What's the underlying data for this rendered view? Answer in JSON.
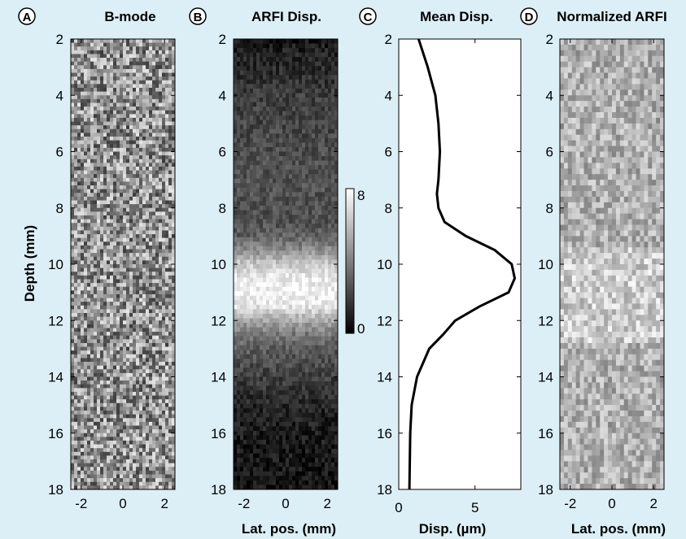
{
  "figure": {
    "background": "#dceff6",
    "ylabel": "Depth (mm)",
    "panels": [
      {
        "letter": "A",
        "title": "B-mode",
        "xlabel": ""
      },
      {
        "letter": "B",
        "title": "ARFI Disp.",
        "xlabel": "Lat. pos. (mm)"
      },
      {
        "letter": "C",
        "title": "Mean Disp.",
        "xlabel": "Disp. (µm)"
      },
      {
        "letter": "D",
        "title": "Normalized ARFI",
        "xlabel": "Lat. pos. (mm)"
      }
    ],
    "colorbar": {
      "min_label": "0",
      "max_label": "8"
    }
  },
  "chart_data": [
    {
      "panel": "A",
      "type": "heatmap",
      "title": "B-mode",
      "ylabel": "Depth (mm)",
      "xlim": [
        -2.5,
        2.5
      ],
      "ylim": [
        18,
        2
      ],
      "x_ticks": [
        -2,
        0,
        2
      ],
      "y_ticks": [
        2,
        4,
        6,
        8,
        10,
        12,
        14,
        16,
        18
      ],
      "colormap": "gray",
      "content": "speckle texture, uniform"
    },
    {
      "panel": "B",
      "type": "heatmap",
      "title": "ARFI Disp.",
      "xlabel": "Lat. pos. (mm)",
      "xlim": [
        -2.5,
        2.5
      ],
      "ylim": [
        18,
        2
      ],
      "x_ticks": [
        -2,
        0,
        2
      ],
      "y_ticks": [
        2,
        4,
        6,
        8,
        10,
        12,
        14,
        16,
        18
      ],
      "colormap": "gray",
      "clim": [
        0,
        8
      ],
      "depth_profile": {
        "depth": [
          2,
          4,
          6,
          7,
          8,
          8.5,
          9,
          9.5,
          10,
          10.5,
          11,
          11.5,
          12,
          12.5,
          13,
          14,
          15,
          16,
          17,
          18
        ],
        "value": [
          0.7,
          1.9,
          2.4,
          2.6,
          2.5,
          2.5,
          3.0,
          4.4,
          6.3,
          7.4,
          7.6,
          7.2,
          5.3,
          3.7,
          2.9,
          2.0,
          1.2,
          0.85,
          0.75,
          0.7
        ]
      }
    },
    {
      "panel": "C",
      "type": "line",
      "title": "Mean Disp.",
      "xlabel": "Disp. (µm)",
      "xlim": [
        0,
        8
      ],
      "ylim": [
        18,
        2
      ],
      "x_ticks": [
        0,
        5
      ],
      "y_ticks": [
        2,
        4,
        6,
        8,
        10,
        12,
        14,
        16,
        18
      ],
      "series": [
        {
          "x": [
            1.3,
            1.9,
            2.4,
            2.6,
            2.7,
            2.6,
            2.5,
            2.6,
            3.0,
            4.4,
            6.3,
            7.4,
            7.6,
            7.2,
            5.3,
            3.7,
            2.9,
            2.0,
            1.2,
            0.85,
            0.75,
            0.7
          ],
          "y": [
            2,
            3,
            4,
            5,
            6,
            7,
            7.5,
            8,
            8.5,
            9,
            9.5,
            10,
            10.5,
            11,
            11.5,
            12,
            12.5,
            13,
            14,
            15,
            16,
            18
          ]
        }
      ]
    },
    {
      "panel": "D",
      "type": "heatmap",
      "title": "Normalized ARFI",
      "xlabel": "Lat. pos. (mm)",
      "xlim": [
        -2.5,
        2.5
      ],
      "ylim": [
        18,
        2
      ],
      "x_ticks": [
        -2,
        0,
        2
      ],
      "y_ticks": [
        2,
        4,
        6,
        8,
        10,
        12,
        14,
        16,
        18
      ],
      "colormap": "gray",
      "content": "noisy normalized displacement, brighter band near 10-12 mm"
    }
  ]
}
